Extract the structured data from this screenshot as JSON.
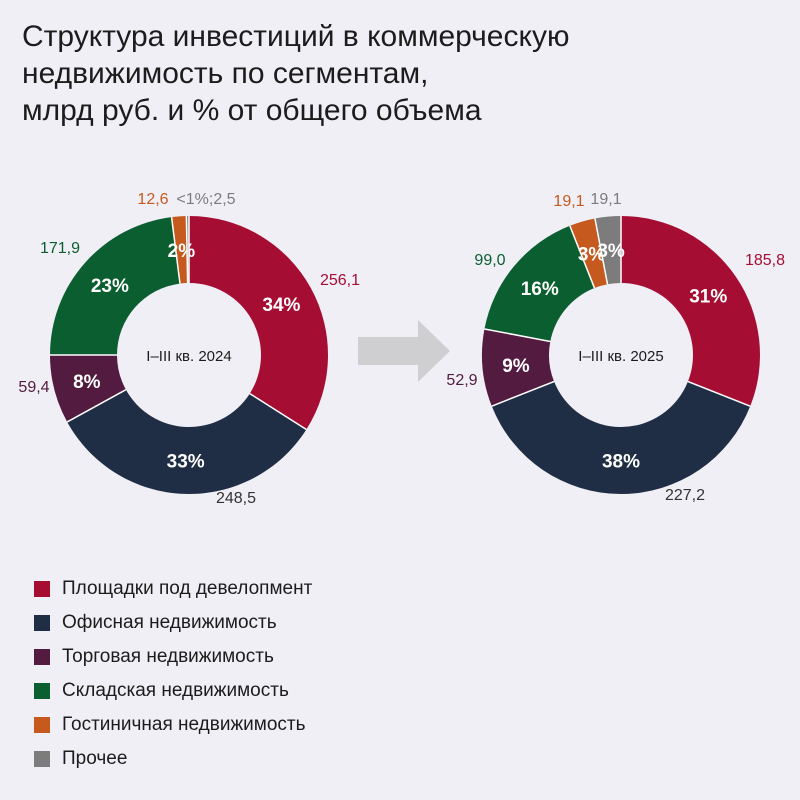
{
  "title_lines": [
    "Структура инвестиций в коммерческую",
    "недвижимость по сегментам,",
    "млрд руб. и % от общего объема"
  ],
  "colors": {
    "development": "#a60d33",
    "office": "#1f2e44",
    "retail": "#531b3f",
    "warehouse": "#0b5e2f",
    "hotel": "#c65a1e",
    "other": "#7c7c7c",
    "arrow": "#cfcfd2"
  },
  "legend": [
    {
      "key": "development",
      "label": "Площадки под девелопмент"
    },
    {
      "key": "office",
      "label": "Офисная недвижимость"
    },
    {
      "key": "retail",
      "label": "Торговая недвижимость"
    },
    {
      "key": "warehouse",
      "label": "Складская недвижимость"
    },
    {
      "key": "hotel",
      "label": "Гостиничная недвижимость"
    },
    {
      "key": "other",
      "label": "Прочее"
    }
  ],
  "chart_data": [
    {
      "type": "pie",
      "style": "donut",
      "center_label": "I–III кв. 2024",
      "slices": [
        {
          "key": "development",
          "share": 34,
          "pct_label": "34%",
          "value_label": "256,1"
        },
        {
          "key": "office",
          "share": 33,
          "pct_label": "33%",
          "value_label": "248,5"
        },
        {
          "key": "retail",
          "share": 8,
          "pct_label": "8%",
          "value_label": "59,4"
        },
        {
          "key": "warehouse",
          "share": 23,
          "pct_label": "23%",
          "value_label": "171,9"
        },
        {
          "key": "hotel",
          "share": 1.7,
          "pct_label": "2%",
          "value_label": "12,6"
        },
        {
          "key": "other",
          "share": 0.3,
          "pct_label": "",
          "value_label": "<1%;2,5"
        }
      ]
    },
    {
      "type": "pie",
      "style": "donut",
      "center_label": "I–III кв. 2025",
      "slices": [
        {
          "key": "development",
          "share": 31,
          "pct_label": "31%",
          "value_label": "185,8"
        },
        {
          "key": "office",
          "share": 38,
          "pct_label": "38%",
          "value_label": "227,2"
        },
        {
          "key": "retail",
          "share": 9,
          "pct_label": "9%",
          "value_label": "52,9"
        },
        {
          "key": "warehouse",
          "share": 16,
          "pct_label": "16%",
          "value_label": "99,0"
        },
        {
          "key": "hotel",
          "share": 3,
          "pct_label": "3%",
          "value_label": "19,1"
        },
        {
          "key": "other",
          "share": 3,
          "pct_label": "3%",
          "value_label": "19,1"
        }
      ]
    }
  ]
}
